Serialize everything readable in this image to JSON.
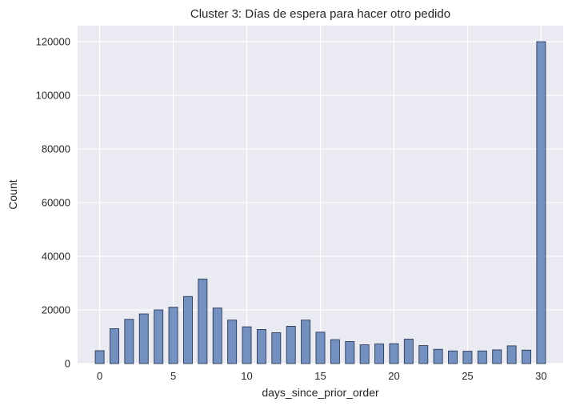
{
  "chart_data": {
    "type": "bar",
    "title": "Cluster 3: Días de espera para hacer otro pedido",
    "xlabel": "days_since_prior_order",
    "ylabel": "Count",
    "xlim": [
      -1.5,
      31.5
    ],
    "ylim": [
      0,
      126000
    ],
    "xticks": [
      0,
      5,
      10,
      15,
      20,
      25,
      30
    ],
    "xtick_labels": [
      "0",
      "5",
      "10",
      "15",
      "20",
      "25",
      "30"
    ],
    "yticks": [
      0,
      20000,
      40000,
      60000,
      80000,
      100000,
      120000
    ],
    "ytick_labels": [
      "0",
      "20000",
      "40000",
      "60000",
      "80000",
      "100000",
      "120000"
    ],
    "bin_width": 0.6,
    "bars": [
      {
        "day": 0,
        "count": 4800
      },
      {
        "day": 1,
        "count": 13000
      },
      {
        "day": 2,
        "count": 16500
      },
      {
        "day": 3,
        "count": 18500
      },
      {
        "day": 4,
        "count": 20000
      },
      {
        "day": 5,
        "count": 21000
      },
      {
        "day": 6,
        "count": 25000
      },
      {
        "day": 7,
        "count": 31500
      },
      {
        "day": 8,
        "count": 20700
      },
      {
        "day": 9,
        "count": 16200
      },
      {
        "day": 10,
        "count": 13700
      },
      {
        "day": 11,
        "count": 12700
      },
      {
        "day": 12,
        "count": 11500
      },
      {
        "day": 13,
        "count": 13900
      },
      {
        "day": 14,
        "count": 16200
      },
      {
        "day": 15,
        "count": 11700
      },
      {
        "day": 16,
        "count": 8900
      },
      {
        "day": 17,
        "count": 8200
      },
      {
        "day": 18,
        "count": 7000
      },
      {
        "day": 19,
        "count": 7300
      },
      {
        "day": 20,
        "count": 7400
      },
      {
        "day": 21,
        "count": 9100
      },
      {
        "day": 22,
        "count": 6700
      },
      {
        "day": 23,
        "count": 5300
      },
      {
        "day": 24,
        "count": 4700
      },
      {
        "day": 25,
        "count": 4600
      },
      {
        "day": 26,
        "count": 4700
      },
      {
        "day": 27,
        "count": 5100
      },
      {
        "day": 28,
        "count": 6600
      },
      {
        "day": 29,
        "count": 5000
      },
      {
        "day": 30,
        "count": 120000
      }
    ],
    "colors": {
      "background": "#eaeaf2",
      "grid": "#ffffff",
      "bar_fill": "#4c72b0",
      "bar_edge": "#2b3a55"
    }
  }
}
